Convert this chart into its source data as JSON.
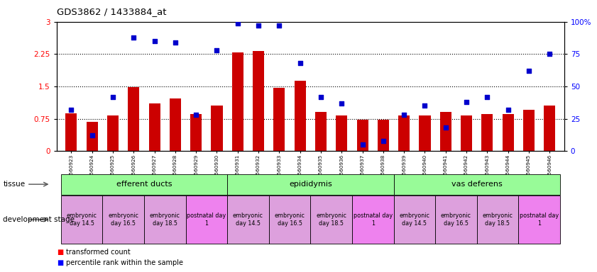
{
  "title": "GDS3862 / 1433884_at",
  "samples": [
    "GSM560923",
    "GSM560924",
    "GSM560925",
    "GSM560926",
    "GSM560927",
    "GSM560928",
    "GSM560929",
    "GSM560930",
    "GSM560931",
    "GSM560932",
    "GSM560933",
    "GSM560934",
    "GSM560935",
    "GSM560936",
    "GSM560937",
    "GSM560938",
    "GSM560939",
    "GSM560940",
    "GSM560941",
    "GSM560942",
    "GSM560943",
    "GSM560944",
    "GSM560945",
    "GSM560946"
  ],
  "transformed_count": [
    0.88,
    0.68,
    0.82,
    1.48,
    1.1,
    1.22,
    0.85,
    1.05,
    2.28,
    2.32,
    1.47,
    1.63,
    0.9,
    0.82,
    0.73,
    0.73,
    0.82,
    0.82,
    0.9,
    0.82,
    0.85,
    0.85,
    0.95,
    1.05
  ],
  "percentile_rank": [
    32,
    12,
    42,
    88,
    85,
    84,
    28,
    78,
    99,
    97,
    97,
    68,
    42,
    37,
    5,
    8,
    28,
    35,
    18,
    38,
    42,
    32,
    62,
    75
  ],
  "bar_color": "#CC0000",
  "dot_color": "#0000CC",
  "ylim_left": [
    0,
    3.0
  ],
  "ylim_right": [
    0,
    100
  ],
  "yticks_left": [
    0,
    0.75,
    1.5,
    2.25,
    3.0
  ],
  "yticks_right": [
    0,
    25,
    50,
    75,
    100
  ],
  "ytick_labels_left": [
    "0",
    "0.75",
    "1.5",
    "2.25",
    "3"
  ],
  "ytick_labels_right": [
    "0",
    "25",
    "50",
    "75",
    "100%"
  ],
  "hlines": [
    0.75,
    1.5,
    2.25
  ],
  "tissue_groups": [
    {
      "label": "efferent ducts",
      "cols": [
        0,
        7
      ],
      "color": "#98FB98"
    },
    {
      "label": "epididymis",
      "cols": [
        8,
        15
      ],
      "color": "#98FB98"
    },
    {
      "label": "vas deferens",
      "cols": [
        16,
        23
      ],
      "color": "#98FB98"
    }
  ],
  "dev_stage_groups": [
    {
      "label": "embryonic\nday 14.5",
      "cols": [
        0,
        1
      ],
      "color": "#DDA0DD"
    },
    {
      "label": "embryonic\nday 16.5",
      "cols": [
        2,
        3
      ],
      "color": "#DDA0DD"
    },
    {
      "label": "embryonic\nday 18.5",
      "cols": [
        4,
        5
      ],
      "color": "#DDA0DD"
    },
    {
      "label": "postnatal day\n1",
      "cols": [
        6,
        7
      ],
      "color": "#EE82EE"
    },
    {
      "label": "embryonic\nday 14.5",
      "cols": [
        8,
        9
      ],
      "color": "#DDA0DD"
    },
    {
      "label": "embryonic\nday 16.5",
      "cols": [
        10,
        11
      ],
      "color": "#DDA0DD"
    },
    {
      "label": "embryonic\nday 18.5",
      "cols": [
        12,
        13
      ],
      "color": "#DDA0DD"
    },
    {
      "label": "postnatal day\n1",
      "cols": [
        14,
        15
      ],
      "color": "#EE82EE"
    },
    {
      "label": "embryonic\nday 14.5",
      "cols": [
        16,
        17
      ],
      "color": "#DDA0DD"
    },
    {
      "label": "embryonic\nday 16.5",
      "cols": [
        18,
        19
      ],
      "color": "#DDA0DD"
    },
    {
      "label": "embryonic\nday 18.5",
      "cols": [
        20,
        21
      ],
      "color": "#DDA0DD"
    },
    {
      "label": "postnatal day\n1",
      "cols": [
        22,
        23
      ],
      "color": "#EE82EE"
    }
  ]
}
